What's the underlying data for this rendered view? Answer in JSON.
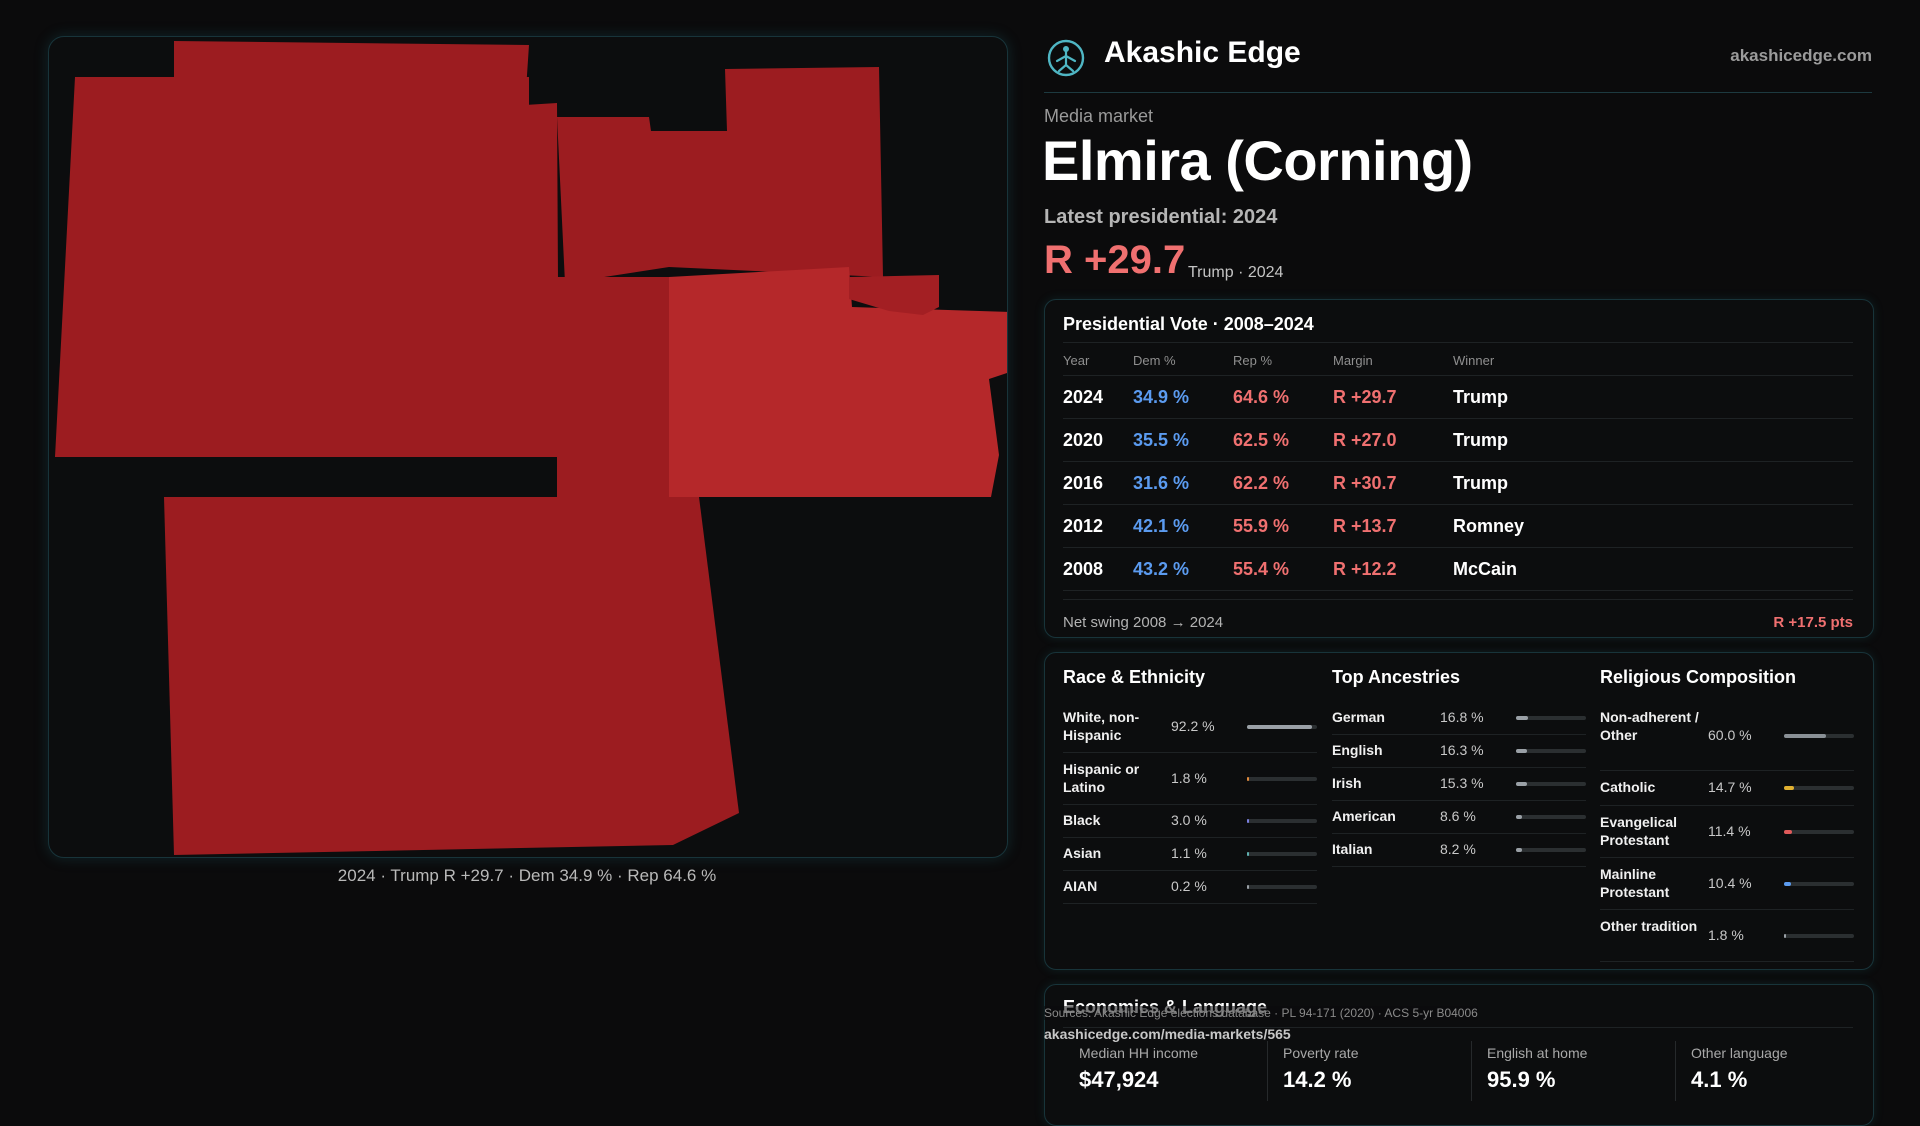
{
  "brand": {
    "name": "Akashic Edge",
    "url": "akashicedge.com",
    "logo_icon": "akashic-edge-logo-icon"
  },
  "market": {
    "eyebrow": "Media market",
    "title": "Elmira (Corning)",
    "latest_label": "Latest presidential: 2024",
    "headline_margin": "R +29.7",
    "headline_sub": "Trump · 2024"
  },
  "map": {
    "caption": "2024 · Trump R +29.7 · Dem 34.9 % · Rep 64.6 %",
    "colors": {
      "deep": "#9c1c20",
      "light": "#b5282a",
      "background": "#0c0d0e"
    }
  },
  "vote": {
    "title": "Presidential Vote · 2008–2024",
    "headers": {
      "year": "Year",
      "dem": "Dem %",
      "rep": "Rep %",
      "margin": "Margin",
      "winner": "Winner"
    },
    "rows": [
      {
        "year": "2024",
        "dem": "34.9 %",
        "rep": "64.6 %",
        "margin": "R +29.7",
        "winner": "Trump"
      },
      {
        "year": "2020",
        "dem": "35.5 %",
        "rep": "62.5 %",
        "margin": "R +27.0",
        "winner": "Trump"
      },
      {
        "year": "2016",
        "dem": "31.6 %",
        "rep": "62.2 %",
        "margin": "R +30.7",
        "winner": "Trump"
      },
      {
        "year": "2012",
        "dem": "42.1 %",
        "rep": "55.9 %",
        "margin": "R +13.7",
        "winner": "Romney"
      },
      {
        "year": "2008",
        "dem": "43.2 %",
        "rep": "55.4 %",
        "margin": "R +12.2",
        "winner": "McCain"
      }
    ],
    "swing_label": "Net swing 2008 → 2024",
    "swing_value": "R +17.5 pts"
  },
  "race": {
    "title": "Race & Ethnicity",
    "items": [
      {
        "label": "White, non-Hispanic",
        "value": "92.2 %",
        "pct": 92.2,
        "color": "#9aa0a6"
      },
      {
        "label": "Hispanic or Latino",
        "value": "1.8 %",
        "pct": 1.8,
        "color": "#e08a3c"
      },
      {
        "label": "Black",
        "value": "3.0 %",
        "pct": 3.0,
        "color": "#7a7fe0"
      },
      {
        "label": "Asian",
        "value": "1.1 %",
        "pct": 1.1,
        "color": "#5fb0b0"
      },
      {
        "label": "AIAN",
        "value": "0.2 %",
        "pct": 0.2,
        "color": "#9aa0a6"
      }
    ]
  },
  "ancestry": {
    "title": "Top Ancestries",
    "items": [
      {
        "label": "German",
        "value": "16.8 %",
        "pct": 16.8,
        "color": "#9aa0a6"
      },
      {
        "label": "English",
        "value": "16.3 %",
        "pct": 16.3,
        "color": "#9aa0a6"
      },
      {
        "label": "Irish",
        "value": "15.3 %",
        "pct": 15.3,
        "color": "#9aa0a6"
      },
      {
        "label": "American",
        "value": "8.6 %",
        "pct": 8.6,
        "color": "#9aa0a6"
      },
      {
        "label": "Italian",
        "value": "8.2 %",
        "pct": 8.2,
        "color": "#9aa0a6"
      }
    ]
  },
  "religion": {
    "title": "Religious Composition",
    "items": [
      {
        "label": "Non-adherent / Other",
        "value": "60.0 %",
        "pct": 60.0,
        "color": "#8a9096"
      },
      {
        "label": "Catholic",
        "value": "14.7 %",
        "pct": 14.7,
        "color": "#e0b030"
      },
      {
        "label": "Evangelical Protestant",
        "value": "11.4 %",
        "pct": 11.4,
        "color": "#e05a5a"
      },
      {
        "label": "Mainline Protestant",
        "value": "10.4 %",
        "pct": 10.4,
        "color": "#5b9bf0"
      },
      {
        "label": "Other tradition",
        "value": "1.8 %",
        "pct": 1.8,
        "color": "#9aa0a6"
      }
    ]
  },
  "economics": {
    "title": "Economics & Language",
    "cells": [
      {
        "label": "Median HH income",
        "value": "$47,924"
      },
      {
        "label": "Poverty rate",
        "value": "14.2 %"
      },
      {
        "label": "English at home",
        "value": "95.9 %"
      },
      {
        "label": "Other language",
        "value": "4.1 %"
      }
    ]
  },
  "footer": {
    "sources": "Sources: Akashic Edge elections database · PL 94-171 (2020) · ACS 5-yr B04006",
    "permalink": "akashicedge.com/media-markets/565"
  }
}
